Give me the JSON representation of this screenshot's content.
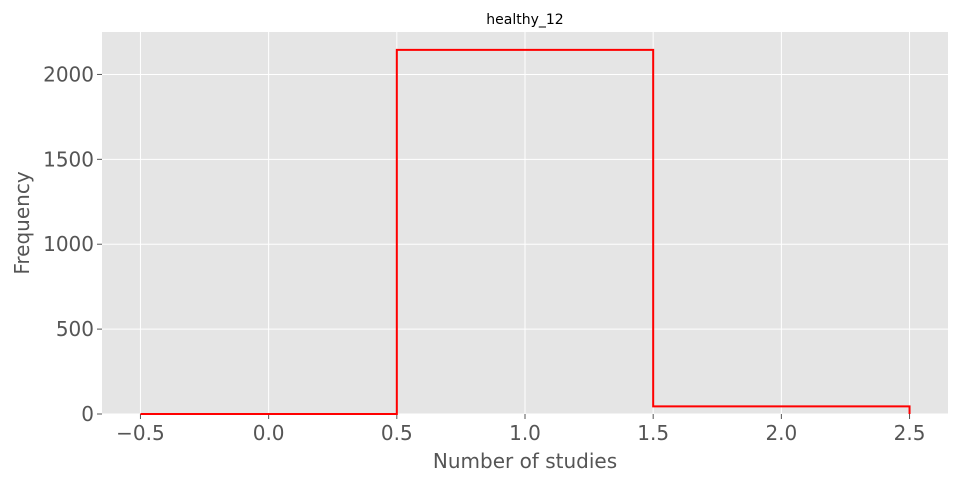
{
  "chart_data": {
    "type": "histogram",
    "title": "healthy_12",
    "xlabel": "Number of studies",
    "ylabel": "Frequency",
    "bin_edges": [
      -0.5,
      0.5,
      1.5,
      2.5
    ],
    "counts": [
      0,
      2145,
      45
    ],
    "xlim": [
      -0.65,
      2.65
    ],
    "ylim": [
      0,
      2250
    ],
    "xticks": [
      -0.5,
      0.0,
      0.5,
      1.0,
      1.5,
      2.0,
      2.5
    ],
    "xtick_labels": [
      "−0.5",
      "0.0",
      "0.5",
      "1.0",
      "1.5",
      "2.0",
      "2.5"
    ],
    "yticks": [
      0,
      500,
      1000,
      1500,
      2000
    ],
    "ytick_labels": [
      "0",
      "500",
      "1000",
      "1500",
      "2000"
    ],
    "histtype": "step",
    "line_color": "#ff0000",
    "background_color": "#e5e5e5",
    "grid_color": "#ffffff",
    "grid": true,
    "legend": false
  }
}
